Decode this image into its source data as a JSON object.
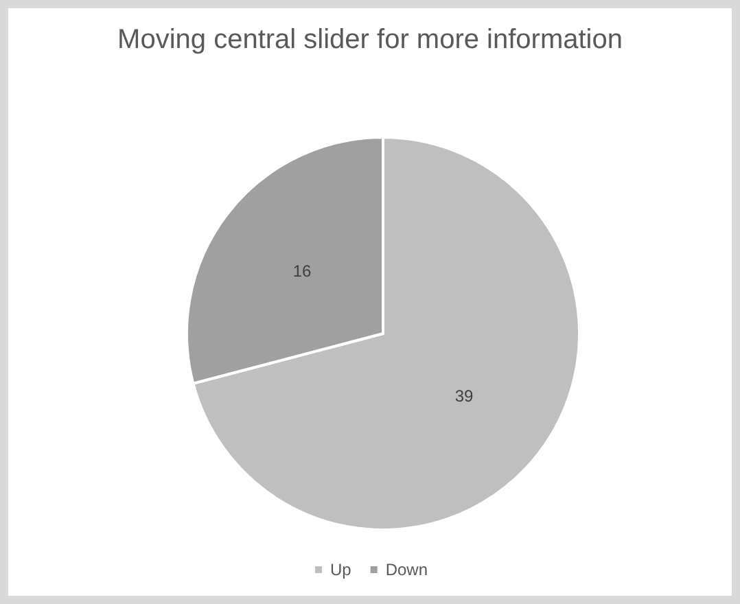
{
  "chart_data": {
    "type": "pie",
    "title": "Moving central slider for more information",
    "categories": [
      "Up",
      "Down"
    ],
    "values": [
      39,
      16
    ],
    "colors": [
      "#bfbfbf",
      "#a0a0a0"
    ],
    "data_labels": true,
    "legend": "bottom"
  }
}
